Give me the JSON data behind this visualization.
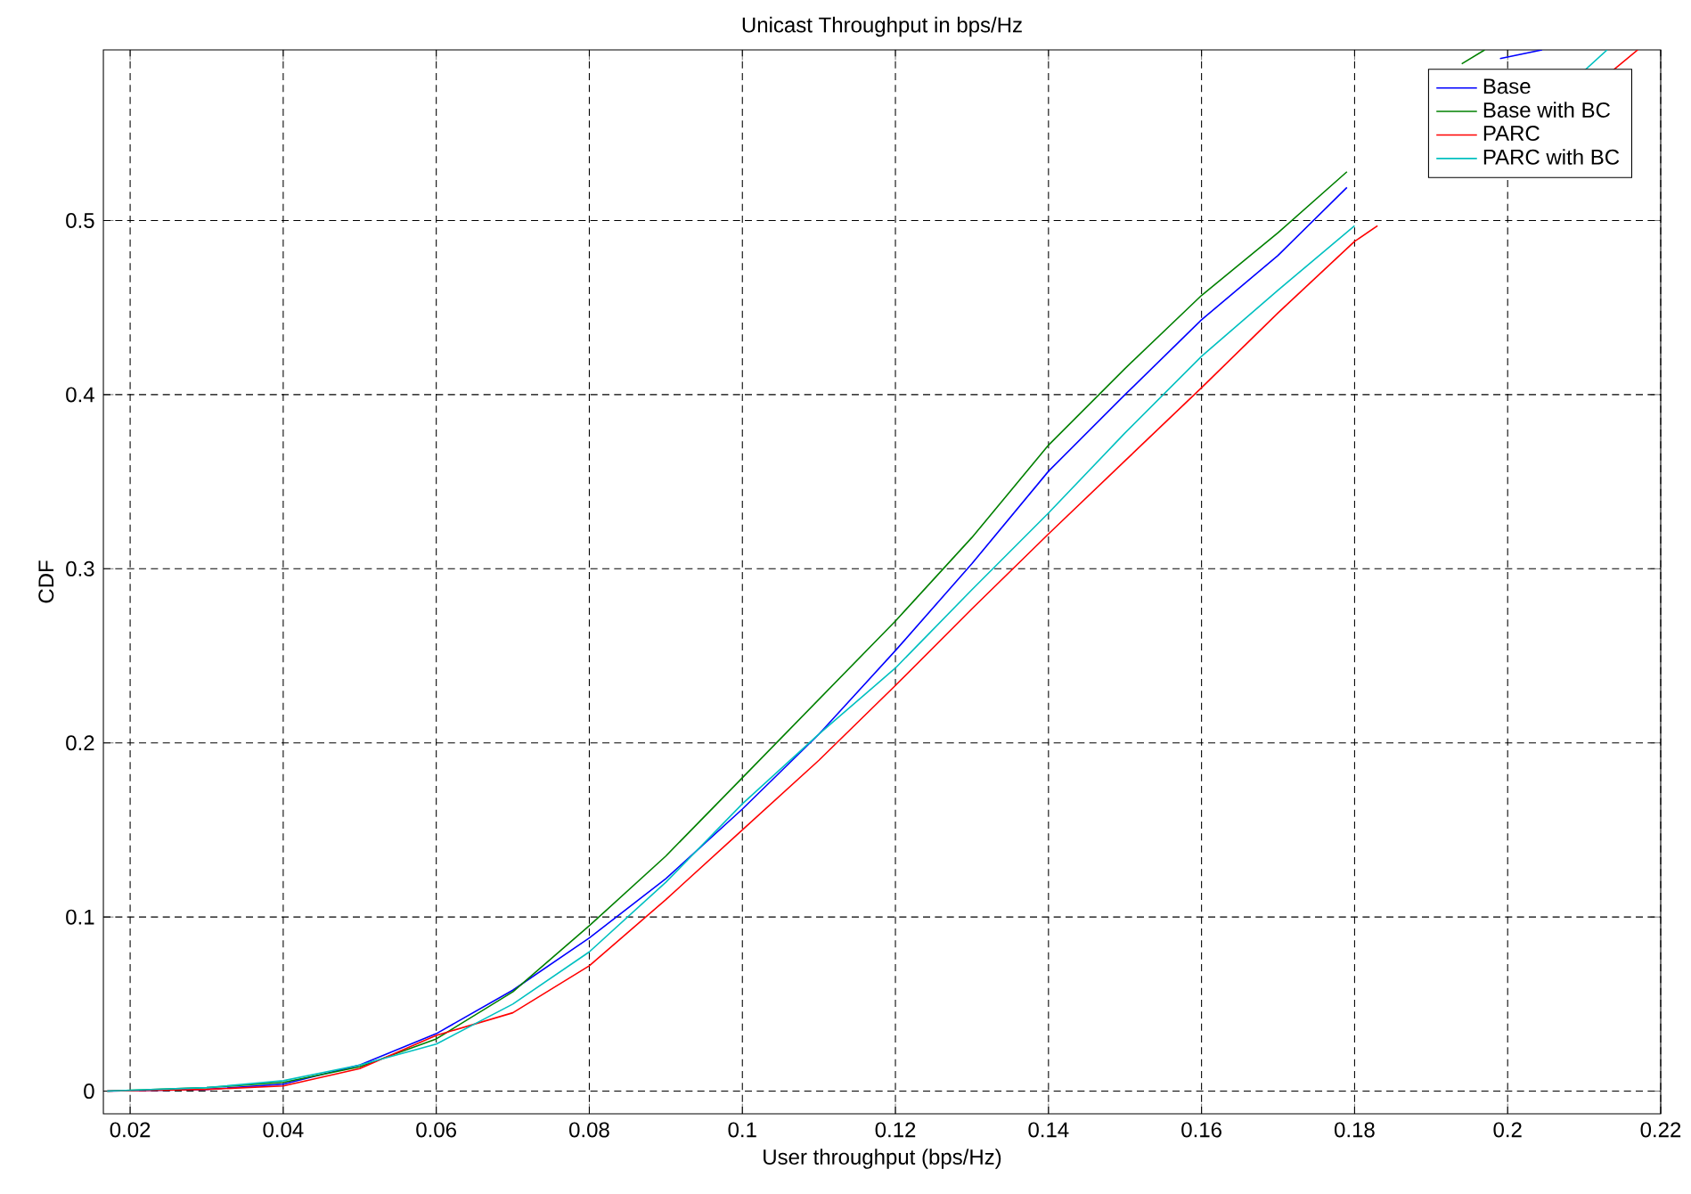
{
  "chart_data": {
    "type": "line",
    "title": "Unicast Throughput in bps/Hz",
    "xlabel": "User throughput (bps/Hz)",
    "ylabel": "CDF",
    "xlim": [
      0.0165,
      0.22
    ],
    "ylim": [
      -0.013,
      0.598
    ],
    "xticks": [
      0.02,
      0.04,
      0.06,
      0.08,
      0.1,
      0.12,
      0.14,
      0.16,
      0.18,
      0.2,
      0.22
    ],
    "yticks": [
      0,
      0.1,
      0.2,
      0.3,
      0.4,
      0.5
    ],
    "grid": true,
    "legend": "top right",
    "line_style": "solid",
    "marker": "none",
    "series": [
      {
        "name": "Base",
        "color": "#0000ff",
        "x": [
          0.017,
          0.03,
          0.04,
          0.05,
          0.06,
          0.07,
          0.08,
          0.09,
          0.1,
          0.11,
          0.12,
          0.13,
          0.14,
          0.15,
          0.16,
          0.17,
          0.179,
          0.19,
          0.199,
          0.2045
        ],
        "values": [
          0,
          0.001,
          0.004,
          0.015,
          0.033,
          0.058,
          0.088,
          0.122,
          0.162,
          0.205,
          0.253,
          0.303,
          0.356,
          0.4,
          0.443,
          0.48,
          0.519,
          null,
          0.593,
          0.598
        ]
      },
      {
        "name": "Base with BC",
        "color": "#008000",
        "x": [
          0.017,
          0.03,
          0.04,
          0.05,
          0.06,
          0.07,
          0.08,
          0.09,
          0.1,
          0.11,
          0.12,
          0.13,
          0.14,
          0.15,
          0.16,
          0.17,
          0.179,
          0.19,
          0.194,
          0.197
        ],
        "values": [
          0,
          0.002,
          0.005,
          0.014,
          0.03,
          0.057,
          0.095,
          0.135,
          0.18,
          0.225,
          0.27,
          0.318,
          0.371,
          0.415,
          0.457,
          0.493,
          0.528,
          null,
          0.59,
          0.598
        ]
      },
      {
        "name": "PARC",
        "color": "#ff0000",
        "x": [
          0.017,
          0.03,
          0.04,
          0.05,
          0.06,
          0.07,
          0.08,
          0.09,
          0.1,
          0.11,
          0.12,
          0.13,
          0.14,
          0.15,
          0.16,
          0.17,
          0.18,
          0.183,
          0.2,
          0.2137,
          0.217
        ],
        "values": [
          0,
          0.001,
          0.003,
          0.013,
          0.032,
          0.045,
          0.072,
          0.11,
          0.15,
          0.19,
          0.233,
          0.277,
          0.32,
          0.362,
          0.404,
          0.447,
          0.488,
          0.497,
          null,
          0.586,
          0.598
        ]
      },
      {
        "name": "PARC with BC",
        "color": "#00c0c0",
        "x": [
          0.017,
          0.03,
          0.04,
          0.05,
          0.06,
          0.07,
          0.08,
          0.09,
          0.1,
          0.11,
          0.12,
          0.13,
          0.14,
          0.15,
          0.16,
          0.17,
          0.18,
          0.19,
          0.21,
          0.213
        ],
        "values": [
          0,
          0.002,
          0.006,
          0.015,
          0.027,
          0.05,
          0.08,
          0.12,
          0.165,
          0.205,
          0.243,
          0.288,
          0.332,
          0.378,
          0.422,
          0.46,
          0.497,
          null,
          0.586,
          0.598
        ]
      }
    ]
  }
}
